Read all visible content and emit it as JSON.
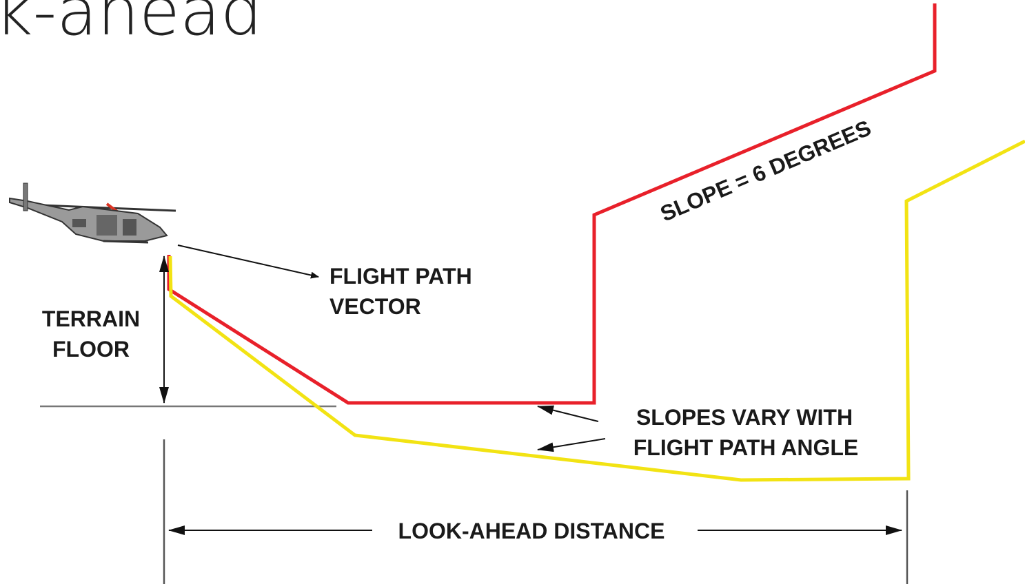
{
  "title": "k-ahead",
  "labels": {
    "flight_path_vector": [
      "FLIGHT PATH",
      "VECTOR"
    ],
    "terrain_floor": [
      "TERRAIN",
      "FLOOR"
    ],
    "slope": "SLOPE = 6 DEGREES",
    "slopes_vary": [
      "SLOPES VARY WITH",
      "FLIGHT PATH ANGLE"
    ],
    "look_ahead": "LOOK-AHEAD DISTANCE"
  }
}
